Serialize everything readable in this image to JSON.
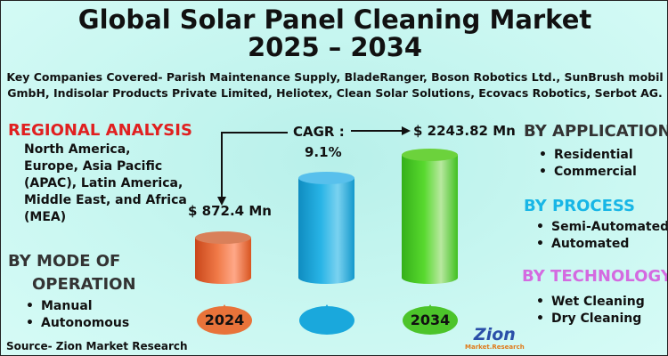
{
  "title": {
    "line1": "Global Solar Panel Cleaning Market",
    "line2": "2025 – 2034"
  },
  "companies": {
    "line1": "Key Companies Covered- Parish Maintenance Supply, BladeRanger, Boson Robotics Ltd., SunBrush mobil",
    "line2": "GmbH, Indisolar Products Private Limited, Heliotex, Clean Solar Solutions, Ecovacs Robotics, Serbot AG."
  },
  "regional": {
    "heading": "REGIONAL ANALYSIS",
    "lines": [
      "North America,",
      "Europe, Asia Pacific",
      "(APAC), Latin America,",
      "Middle East, and Africa",
      "(MEA)"
    ]
  },
  "mode": {
    "heading1": "BY MODE OF",
    "heading2": "OPERATION",
    "items": [
      "Manual",
      "Autonomous"
    ]
  },
  "application": {
    "heading": "BY APPLICATION",
    "items": [
      "Residential",
      "Commercial"
    ]
  },
  "process": {
    "heading": "BY PROCESS",
    "items": [
      "Semi-Automated",
      "Automated"
    ]
  },
  "technology": {
    "heading": "BY TECHNOLOGY",
    "items": [
      "Wet Cleaning",
      "Dry Cleaning"
    ]
  },
  "source": "Source- Zion Market Research",
  "logo": {
    "text": "Zion",
    "sub": "Market.Research"
  },
  "colors": {
    "regional": "#e02020",
    "process": "#18b6e6",
    "technology": "#d46ae0",
    "orange": "#e8622a",
    "blue": "#14a6d8",
    "green": "#3cc81e"
  },
  "chart_data": {
    "type": "bar",
    "categories": [
      "2024",
      "",
      "2034"
    ],
    "values": [
      872.4,
      null,
      2243.82
    ],
    "value_labels": [
      "$ 872.4 Mn",
      "",
      "$ 2243.82 Mn"
    ],
    "cagr_label": "CAGR :",
    "cagr_value": "9.1%",
    "unit": "USD Mn"
  }
}
